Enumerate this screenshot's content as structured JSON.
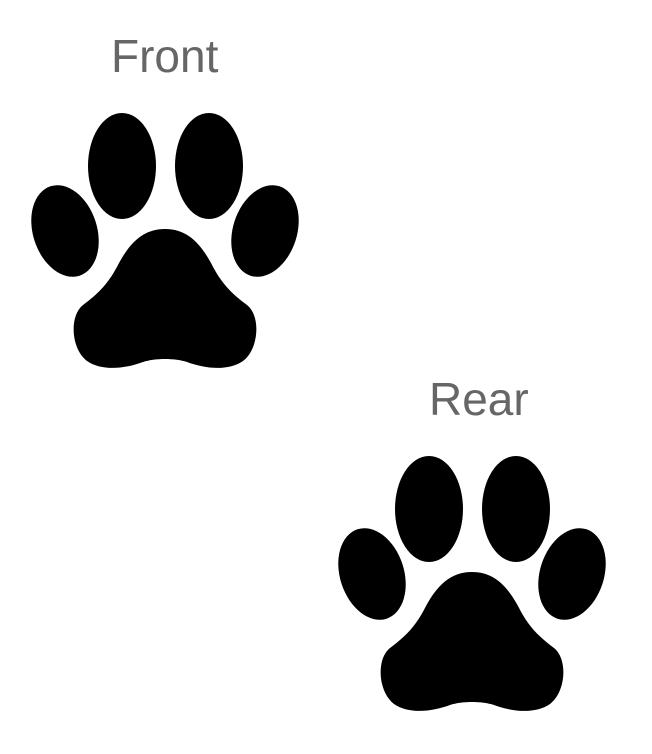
{
  "front": {
    "label": "Front",
    "icon": "paw-print-icon"
  },
  "rear": {
    "label": "Rear",
    "icon": "paw-print-icon"
  },
  "colors": {
    "paw": "#000000",
    "label_text": "#666666",
    "background": "#ffffff"
  }
}
